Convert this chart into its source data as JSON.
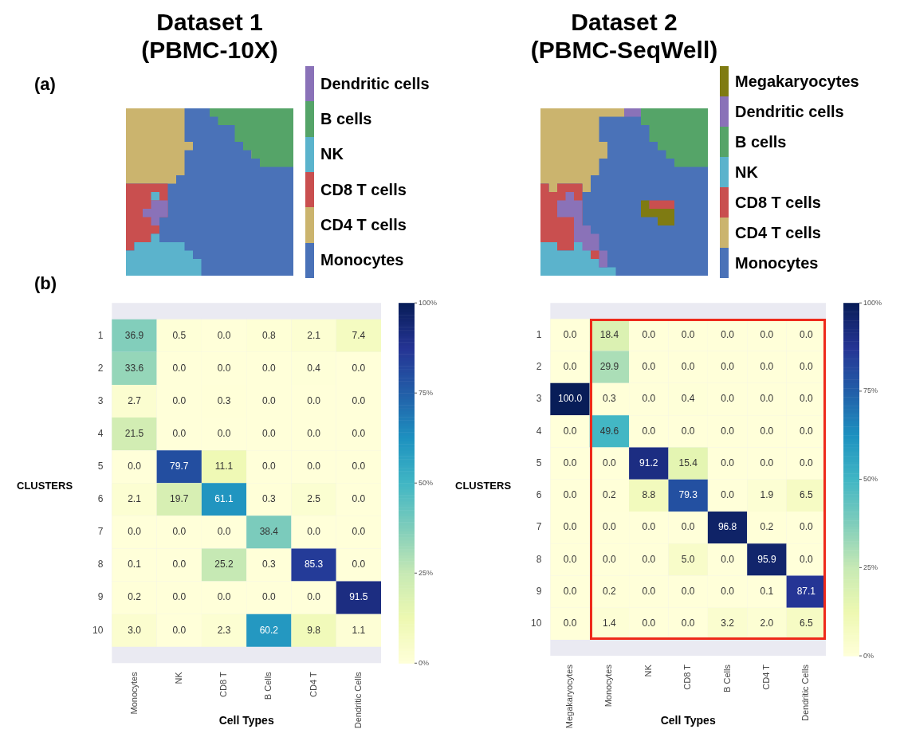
{
  "chart_data": [
    {
      "type": "other",
      "title": "Dataset 1\n(PBMC-10X)",
      "annotations": [
        "(a)"
      ],
      "categories": [
        "Dendritic cells",
        "B cells",
        "NK",
        "CD8 T cells",
        "CD4 T cells",
        "Monocytes"
      ],
      "colors": [
        "#8a72b8",
        "#55a468",
        "#5bb3cc",
        "#c94f4f",
        "#cbb46e",
        "#4a72b8"
      ]
    },
    {
      "type": "other",
      "title": "Dataset 2\n(PBMC-SeqWell)",
      "categories": [
        "Megakaryocytes",
        "Dendritic cells",
        "B cells",
        "NK",
        "CD8 T cells",
        "CD4 T cells",
        "Monocytes"
      ],
      "colors": [
        "#7f7b12",
        "#8a72b8",
        "#55a468",
        "#5bb3cc",
        "#c94f4f",
        "#cbb46e",
        "#4a72b8"
      ]
    },
    {
      "type": "heatmap",
      "annotations": [
        "(b)"
      ],
      "xlabel": "Cell Types",
      "ylabel": "CLUSTERS",
      "categories": [
        "Monocytes",
        "NK",
        "CD8 T",
        "B Cells",
        "CD4 T",
        "Dendritic Cells"
      ],
      "y_categories": [
        "1",
        "2",
        "3",
        "4",
        "5",
        "6",
        "7",
        "8",
        "9",
        "10"
      ],
      "clim": [
        0,
        100
      ],
      "cticks": [
        {
          "value": 0,
          "label": "0%"
        },
        {
          "value": 25,
          "label": "25%"
        },
        {
          "value": 50,
          "label": "50%"
        },
        {
          "value": 75,
          "label": "75%"
        },
        {
          "value": 100,
          "label": "100%"
        }
      ],
      "cells": [
        [
          36.9,
          0.5,
          0.0,
          0.8,
          2.1,
          7.4
        ],
        [
          33.6,
          0.0,
          0.0,
          0.0,
          0.4,
          0.0
        ],
        [
          2.7,
          0.0,
          0.3,
          0.0,
          0.0,
          0.0
        ],
        [
          21.5,
          0.0,
          0.0,
          0.0,
          0.0,
          0.0
        ],
        [
          0.0,
          79.7,
          11.1,
          0.0,
          0.0,
          0.0
        ],
        [
          2.1,
          19.7,
          61.1,
          0.3,
          2.5,
          0.0
        ],
        [
          0.0,
          0.0,
          0.0,
          38.4,
          0.0,
          0.0
        ],
        [
          0.1,
          0.0,
          25.2,
          0.3,
          85.3,
          0.0
        ],
        [
          0.2,
          0.0,
          0.0,
          0.0,
          0.0,
          91.5
        ],
        [
          3.0,
          0.0,
          2.3,
          60.2,
          9.8,
          1.1
        ]
      ],
      "cell_labels": [
        [
          "36.9",
          "0.5",
          "0.0",
          "0.8",
          "2.1",
          "7.4"
        ],
        [
          "33.6",
          "0.0",
          "0.0",
          "0.0",
          "0.4",
          "0.0"
        ],
        [
          "2.7",
          "0.0",
          "0.3",
          "0.0",
          "0.0",
          "0.0"
        ],
        [
          "21.5",
          "0.0",
          "0.0",
          "0.0",
          "0.0",
          "0.0"
        ],
        [
          "0.0",
          "79.7",
          "11.1",
          "0.0",
          "0.0",
          "0.0"
        ],
        [
          "2.1",
          "19.7",
          "61.1",
          "0.3",
          "2.5",
          "0.0"
        ],
        [
          "0.0",
          "0.0",
          "0.0",
          "38.4",
          "0.0",
          "0.0"
        ],
        [
          "0.1",
          "0.0",
          "25.2",
          "0.3",
          "85.3",
          "0.0"
        ],
        [
          "0.2",
          "0.0",
          "0.0",
          "0.0",
          "0.0",
          "91.5"
        ],
        [
          "3.0",
          "0.0",
          "2.3",
          "60.2",
          "9.8",
          "1.1"
        ]
      ]
    },
    {
      "type": "heatmap",
      "xlabel": "Cell Types",
      "ylabel": "CLUSTERS",
      "categories": [
        "Megakaryocytes",
        "Monocytes",
        "NK",
        "CD8 T",
        "B Cells",
        "CD4 T",
        "Dendritic Cells"
      ],
      "y_categories": [
        "1",
        "2",
        "3",
        "4",
        "5",
        "6",
        "7",
        "8",
        "9",
        "10"
      ],
      "clim": [
        0,
        100
      ],
      "cticks": [
        {
          "value": 0,
          "label": "0%"
        },
        {
          "value": 25,
          "label": "25%"
        },
        {
          "value": 50,
          "label": "50%"
        },
        {
          "value": 75,
          "label": "75%"
        },
        {
          "value": 100,
          "label": "100%"
        }
      ],
      "cells": [
        [
          0.0,
          18.4,
          0.0,
          0.0,
          0.0,
          0.0,
          0.0
        ],
        [
          0.0,
          29.9,
          0.0,
          0.0,
          0.0,
          0.0,
          0.0
        ],
        [
          100.0,
          0.3,
          0.0,
          0.4,
          0.0,
          0.0,
          0.0
        ],
        [
          0.0,
          49.6,
          0.0,
          0.0,
          0.0,
          0.0,
          0.0
        ],
        [
          0.0,
          0.0,
          91.2,
          15.4,
          0.0,
          0.0,
          0.0
        ],
        [
          0.0,
          0.2,
          8.8,
          79.3,
          0.0,
          1.9,
          6.5
        ],
        [
          0.0,
          0.0,
          0.0,
          0.0,
          96.8,
          0.2,
          0.0
        ],
        [
          0.0,
          0.0,
          0.0,
          5.0,
          0.0,
          95.9,
          0.0
        ],
        [
          0.0,
          0.2,
          0.0,
          0.0,
          0.0,
          0.1,
          87.1
        ],
        [
          0.0,
          1.4,
          0.0,
          0.0,
          3.2,
          2.0,
          6.5
        ]
      ],
      "cell_labels": [
        [
          "0.0",
          "18.4",
          "0.0",
          "0.0",
          "0.0",
          "0.0",
          "0.0"
        ],
        [
          "0.0",
          "29.9",
          "0.0",
          "0.0",
          "0.0",
          "0.0",
          "0.0"
        ],
        [
          "100.0",
          "0.3",
          "0.0",
          "0.4",
          "0.0",
          "0.0",
          "0.0"
        ],
        [
          "0.0",
          "49.6",
          "0.0",
          "0.0",
          "0.0",
          "0.0",
          "0.0"
        ],
        [
          "0.0",
          "0.0",
          "91.2",
          "15.4",
          "0.0",
          "0.0",
          "0.0"
        ],
        [
          "0.0",
          "0.2",
          "8.8",
          "79.3",
          "0.0",
          "1.9",
          "6.5"
        ],
        [
          "0.0",
          "0.0",
          "0.0",
          "0.0",
          "96.8",
          "0.2",
          "0.0"
        ],
        [
          "0.0",
          "0.0",
          "0.0",
          "5.0",
          "0.0",
          "95.9",
          "0.0"
        ],
        [
          "0.0",
          "0.2",
          "0.0",
          "0.0",
          "0.0",
          "0.1",
          "87.1"
        ],
        [
          "0.0",
          "1.4",
          "0.0",
          "0.0",
          "3.2",
          "2.0",
          "6.5"
        ]
      ]
    }
  ]
}
